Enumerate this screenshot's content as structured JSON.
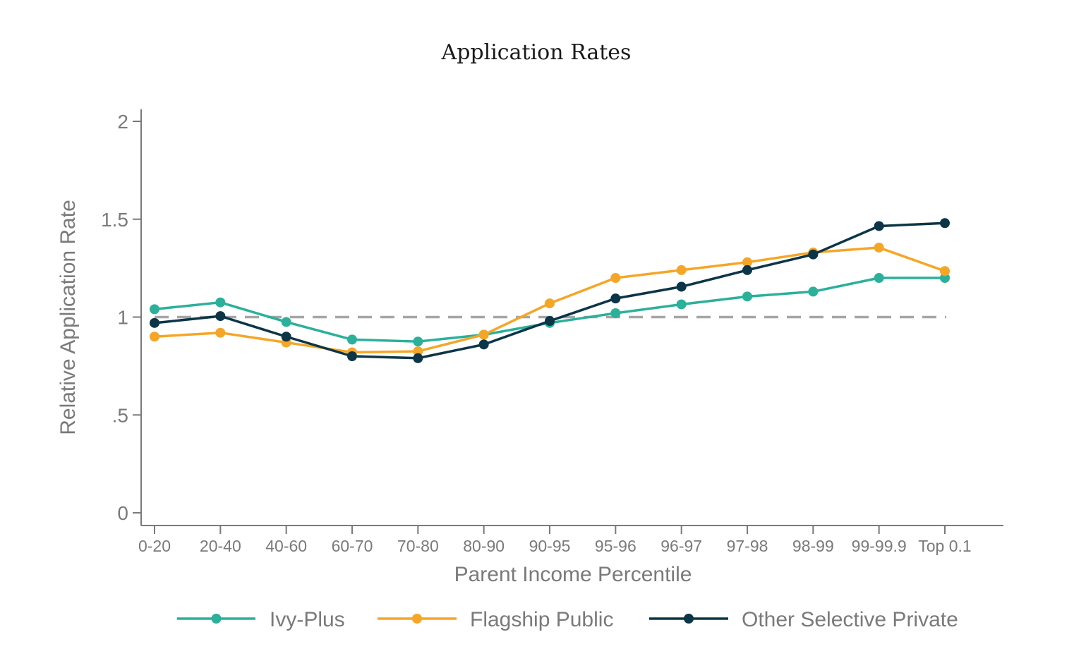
{
  "chart_data": {
    "type": "line",
    "title": "Application Rates",
    "xlabel": "Parent Income Percentile",
    "ylabel": "Relative Application Rate",
    "ylim": [
      0,
      2
    ],
    "yticks": [
      {
        "value": 0,
        "label": "0"
      },
      {
        "value": 0.5,
        "label": ".5"
      },
      {
        "value": 1,
        "label": "1"
      },
      {
        "value": 1.5,
        "label": "1.5"
      },
      {
        "value": 2,
        "label": "2"
      }
    ],
    "categories": [
      "0-20",
      "20-40",
      "40-60",
      "60-70",
      "70-80",
      "80-90",
      "90-95",
      "95-96",
      "96-97",
      "97-98",
      "98-99",
      "99-99.9",
      "Top 0.1"
    ],
    "reference_line": {
      "y": 1,
      "style": "dashed",
      "color": "#a6a6a6"
    },
    "grid": false,
    "legend_position": "bottom",
    "series": [
      {
        "name": "Ivy-Plus",
        "color": "#2bb09a",
        "values": [
          1.04,
          1.075,
          0.975,
          0.885,
          0.875,
          0.91,
          0.97,
          1.02,
          1.065,
          1.105,
          1.13,
          1.2,
          1.2
        ]
      },
      {
        "name": "Flagship Public",
        "color": "#f5a627",
        "values": [
          0.9,
          0.92,
          0.87,
          0.82,
          0.825,
          0.91,
          1.07,
          1.2,
          1.24,
          1.28,
          1.33,
          1.355,
          1.235
        ]
      },
      {
        "name": "Other Selective Private",
        "color": "#0c3547",
        "values": [
          0.97,
          1.005,
          0.9,
          0.8,
          0.79,
          0.86,
          0.98,
          1.095,
          1.155,
          1.24,
          1.32,
          1.465,
          1.48
        ]
      }
    ]
  }
}
